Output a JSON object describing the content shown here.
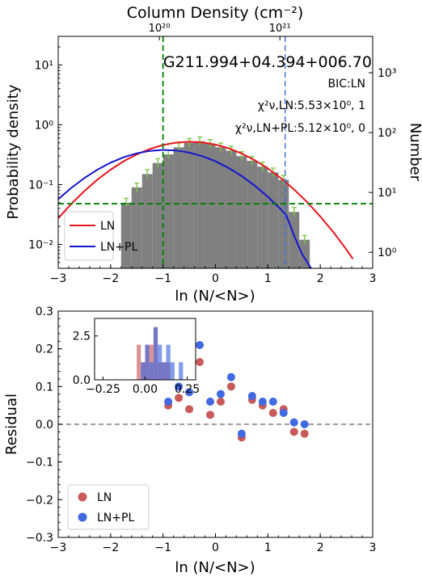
{
  "chart_data": [
    {
      "type": "bar",
      "subtype": "histogram-with-fits",
      "title": "G211.994+04.394+006.70",
      "annotations": [
        "BIC:LN",
        "χ²ν,LN:5.53×10⁰, 1",
        "χ²ν,LN+PL:5.12×10⁰, 0"
      ],
      "xlabel": "ln (N/<N>)",
      "ylabel": "Probability density",
      "ylabel_right": "Number",
      "xlabel_top": "Column Density (cm⁻²)",
      "xlim": [
        -3,
        3
      ],
      "ylim": [
        0.004,
        30
      ],
      "yscale": "log",
      "xticks": [
        "−3",
        "−2",
        "−1",
        "0",
        "1",
        "2",
        "3"
      ],
      "yticks_left": [
        "10⁻²",
        "10⁻¹",
        "10⁰",
        "10¹"
      ],
      "yticks_right": [
        "10⁰",
        "10¹",
        "10²",
        "10³"
      ],
      "xticks_top": [
        "10²⁰",
        "10²¹"
      ],
      "top_tick_positions": [
        -1.07,
        1.23
      ],
      "right_axis_values": [
        1,
        10,
        100,
        1000
      ],
      "histogram": {
        "bin_width": 0.2,
        "centers": [
          -1.7,
          -1.5,
          -1.3,
          -1.1,
          -0.9,
          -0.7,
          -0.5,
          -0.3,
          -0.1,
          0.1,
          0.3,
          0.5,
          0.7,
          0.9,
          1.1,
          1.3,
          1.5,
          1.7
        ],
        "values": [
          0.05,
          0.09,
          0.15,
          0.23,
          0.32,
          0.42,
          0.5,
          0.53,
          0.48,
          0.42,
          0.37,
          0.3,
          0.25,
          0.2,
          0.16,
          0.12,
          0.035,
          0.012
        ],
        "color": "#808080"
      },
      "series": [
        {
          "name": "LN",
          "color": "#e8141a",
          "x": [
            -3.0,
            -2.75,
            -2.5,
            -2.25,
            -2.0,
            -1.75,
            -1.5,
            -1.25,
            -1.0,
            -0.75,
            -0.5,
            -0.25,
            0.0,
            0.25,
            0.5,
            0.75,
            1.0,
            1.25,
            1.5,
            1.75,
            2.0,
            2.25,
            2.5,
            2.62
          ],
          "values": [
            0.0274,
            0.0476,
            0.0782,
            0.1214,
            0.1778,
            0.2459,
            0.3209,
            0.3953,
            0.4593,
            0.5034,
            0.5204,
            0.5075,
            0.4668,
            0.4049,
            0.3314,
            0.2559,
            0.1864,
            0.1281,
            0.083,
            0.0508,
            0.0293,
            0.016,
            0.00823,
            0.00575
          ]
        },
        {
          "name": "LN+PL",
          "color": "#1414d2",
          "x": [
            -3.0,
            -2.75,
            -2.5,
            -2.25,
            -2.0,
            -1.75,
            -1.5,
            -1.25,
            -1.0,
            -0.75,
            -0.5,
            -0.25,
            0.0,
            0.25,
            0.5,
            0.75,
            1.0,
            1.25,
            1.35,
            1.5,
            1.65,
            1.8,
            1.85
          ],
          "values": [
            0.0571,
            0.0883,
            0.129,
            0.178,
            0.2324,
            0.2863,
            0.3334,
            0.3664,
            0.38,
            0.3718,
            0.3431,
            0.2987,
            0.2455,
            0.1903,
            0.1393,
            0.0962,
            0.0627,
            0.0385,
            0.0312,
            0.014,
            0.007,
            0.0043,
            0.0038
          ]
        }
      ],
      "hlines": [
        {
          "y": 0.048,
          "color": "#008000",
          "style": "dashed"
        }
      ],
      "vlines": [
        {
          "x": -1.0,
          "color": "#008000",
          "style": "dashed"
        },
        {
          "x": 1.33,
          "color": "#3a6fd8",
          "style": "dashed"
        }
      ],
      "legend": {
        "position": "lower-left",
        "entries": [
          "LN",
          "LN+PL"
        ]
      },
      "grid": false
    },
    {
      "type": "scatter",
      "xlabel": "ln (N/<N>)",
      "ylabel": "Residual",
      "xlim": [
        -3,
        3
      ],
      "ylim": [
        -0.3,
        0.3
      ],
      "xticks": [
        "−3",
        "−2",
        "−1",
        "0",
        "1",
        "2",
        "3"
      ],
      "yticks": [
        "−0.3",
        "−0.2",
        "−0.1",
        "0.0",
        "0.1",
        "0.2",
        "0.3"
      ],
      "hlines": [
        {
          "y": 0.0,
          "color": "#808080",
          "style": "dashed"
        }
      ],
      "series": [
        {
          "name": "LN",
          "color": "#c85a5a",
          "points": [
            [
              -0.9,
              0.05
            ],
            [
              -0.7,
              0.07
            ],
            [
              -0.5,
              0.04
            ],
            [
              -0.3,
              0.165
            ],
            [
              -0.1,
              0.025
            ],
            [
              0.1,
              0.06
            ],
            [
              0.3,
              0.1
            ],
            [
              0.5,
              -0.035
            ],
            [
              0.7,
              0.065
            ],
            [
              0.9,
              0.05
            ],
            [
              1.1,
              0.03
            ],
            [
              1.3,
              0.04
            ],
            [
              1.5,
              -0.02
            ],
            [
              1.7,
              -0.025
            ]
          ]
        },
        {
          "name": "LN+PL",
          "color": "#4169e1",
          "points": [
            [
              -0.9,
              0.06
            ],
            [
              -0.7,
              0.1
            ],
            [
              -0.5,
              0.085
            ],
            [
              -0.3,
              0.21
            ],
            [
              -0.1,
              0.06
            ],
            [
              0.1,
              0.08
            ],
            [
              0.3,
              0.125
            ],
            [
              0.5,
              -0.025
            ],
            [
              0.7,
              0.075
            ],
            [
              0.9,
              0.06
            ],
            [
              1.1,
              0.06
            ],
            [
              1.3,
              0.03
            ],
            [
              1.5,
              0.005
            ],
            [
              1.7,
              0.0
            ]
          ]
        }
      ],
      "legend": {
        "position": "lower-left",
        "entries": [
          "LN",
          "LN+PL"
        ]
      },
      "inset": {
        "type": "histogram",
        "xlim": [
          -0.3,
          0.3
        ],
        "ylim": [
          0,
          3.5
        ],
        "xticks": [
          "−0.25",
          "0.00",
          "0.25"
        ],
        "yticks": [
          "0.0",
          "2.5"
        ],
        "series": [
          {
            "name": "LN",
            "color": "#c85a5a",
            "edges": [
              -0.05,
              -0.025,
              0.0,
              0.025,
              0.05,
              0.075,
              0.1,
              0.125,
              0.15,
              0.175
            ],
            "counts": [
              2,
              1,
              2,
              2,
              3,
              1,
              1,
              1,
              0
            ]
          },
          {
            "name": "LN+PL",
            "color": "#4169e1",
            "edges": [
              -0.05,
              -0.025,
              0.0,
              0.025,
              0.05,
              0.075,
              0.1,
              0.125,
              0.15,
              0.175,
              0.2,
              0.225
            ],
            "counts": [
              0,
              1,
              2,
              1,
              3,
              2,
              1,
              2,
              1,
              0,
              1
            ]
          }
        ]
      }
    }
  ]
}
